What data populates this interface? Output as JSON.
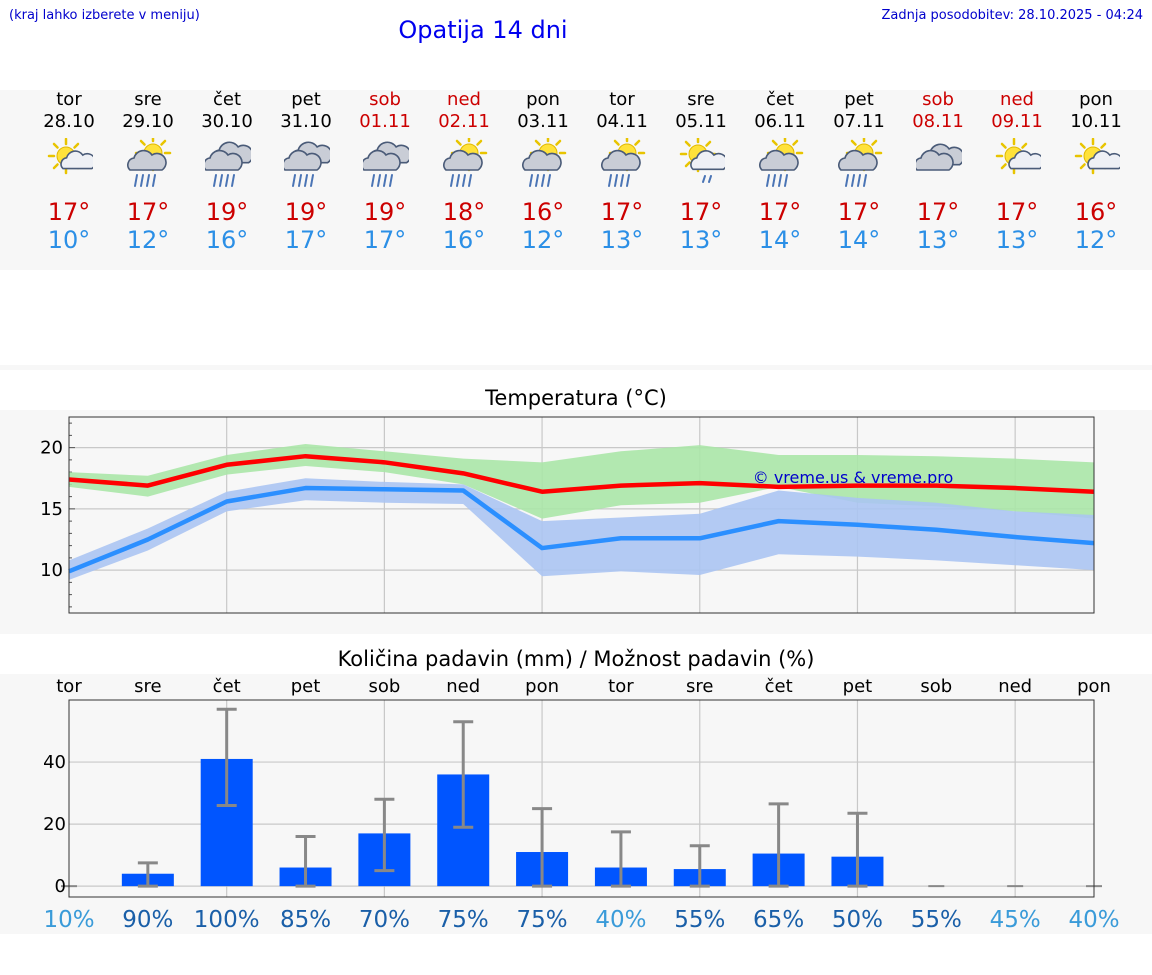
{
  "header": {
    "hint": "(kraj lahko izberete v meniju)",
    "title": "Opatija 14 dni",
    "updated": "Zadnja posodobitev: 28.10.2025 - 04:24"
  },
  "days": [
    {
      "name": "tor",
      "date": "28.10",
      "weekend": false,
      "icon": "sun-cloud-icon",
      "max": "17°",
      "min": "10°"
    },
    {
      "name": "sre",
      "date": "29.10",
      "weekend": false,
      "icon": "sun-cloud-rain-icon",
      "max": "17°",
      "min": "12°"
    },
    {
      "name": "čet",
      "date": "30.10",
      "weekend": false,
      "icon": "cloud-rain-icon",
      "max": "19°",
      "min": "16°"
    },
    {
      "name": "pet",
      "date": "31.10",
      "weekend": false,
      "icon": "cloud-rain-icon",
      "max": "19°",
      "min": "17°"
    },
    {
      "name": "sob",
      "date": "01.11",
      "weekend": true,
      "icon": "cloud-rain-icon",
      "max": "19°",
      "min": "17°"
    },
    {
      "name": "ned",
      "date": "02.11",
      "weekend": true,
      "icon": "sun-cloud-rain-icon",
      "max": "18°",
      "min": "16°"
    },
    {
      "name": "pon",
      "date": "03.11",
      "weekend": false,
      "icon": "sun-cloud-rain-icon",
      "max": "16°",
      "min": "12°"
    },
    {
      "name": "tor",
      "date": "04.11",
      "weekend": false,
      "icon": "sun-cloud-rain-icon",
      "max": "17°",
      "min": "13°"
    },
    {
      "name": "sre",
      "date": "05.11",
      "weekend": false,
      "icon": "sun-cloud-drizzle-icon",
      "max": "17°",
      "min": "13°"
    },
    {
      "name": "čet",
      "date": "06.11",
      "weekend": false,
      "icon": "sun-cloud-rain-icon",
      "max": "17°",
      "min": "14°"
    },
    {
      "name": "pet",
      "date": "07.11",
      "weekend": false,
      "icon": "sun-cloud-rain-icon",
      "max": "17°",
      "min": "14°"
    },
    {
      "name": "sob",
      "date": "08.11",
      "weekend": true,
      "icon": "cloud-icon",
      "max": "17°",
      "min": "13°"
    },
    {
      "name": "ned",
      "date": "09.11",
      "weekend": true,
      "icon": "sun-cloud-icon",
      "max": "17°",
      "min": "13°"
    },
    {
      "name": "pon",
      "date": "10.11",
      "weekend": false,
      "icon": "sun-cloud-icon",
      "max": "16°",
      "min": "12°"
    }
  ],
  "colors": {
    "max_line": "#ff0000",
    "min_line": "#2b8fff",
    "max_band": "#a9e6a6",
    "min_band": "#aac4f2",
    "bar": "#0055ff",
    "error_bar": "#888888",
    "watermark": "#0000cc"
  },
  "chart_data": [
    {
      "type": "line",
      "title": "Temperatura (°C)",
      "watermark": "© vreme.us & vreme.pro",
      "ylim": [
        6.5,
        22.5
      ],
      "yticks": [
        10,
        15,
        20
      ],
      "grid": true,
      "x": [
        0,
        1,
        2,
        3,
        4,
        5,
        6,
        7,
        8,
        9,
        10,
        11,
        12,
        13
      ],
      "series": [
        {
          "name": "",
          "role": "max",
          "values": [
            17.4,
            16.9,
            18.6,
            19.3,
            18.8,
            17.9,
            16.4,
            16.9,
            17.1,
            16.8,
            16.9,
            16.9,
            16.7,
            16.4
          ]
        },
        {
          "name": "",
          "role": "min",
          "values": [
            9.9,
            12.5,
            15.6,
            16.7,
            16.6,
            16.5,
            11.8,
            12.6,
            12.6,
            14.0,
            13.7,
            13.3,
            12.7,
            12.2
          ]
        }
      ],
      "bands": [
        {
          "role": "max",
          "low": [
            16.8,
            16.0,
            17.8,
            18.5,
            18.0,
            17.0,
            14.2,
            15.3,
            15.5,
            16.8,
            15.5,
            15.2,
            14.8,
            14.2
          ],
          "high": [
            18.0,
            17.7,
            19.4,
            20.3,
            19.7,
            19.1,
            18.8,
            19.7,
            20.2,
            19.4,
            19.4,
            19.3,
            19.1,
            18.8
          ]
        },
        {
          "role": "min",
          "low": [
            9.2,
            11.6,
            14.8,
            15.7,
            15.5,
            15.4,
            9.5,
            9.9,
            9.6,
            11.3,
            11.1,
            10.8,
            10.4,
            10.0
          ],
          "high": [
            10.8,
            13.4,
            16.4,
            17.5,
            17.2,
            17.0,
            14.0,
            14.3,
            14.6,
            16.5,
            15.9,
            15.5,
            14.8,
            14.5
          ]
        }
      ]
    },
    {
      "type": "bar",
      "title": "Količina padavin (mm) / Možnost padavin (%)",
      "categories": [
        "tor",
        "sre",
        "čet",
        "pet",
        "sob",
        "ned",
        "pon",
        "tor",
        "sre",
        "čet",
        "pet",
        "sob",
        "ned",
        "pon"
      ],
      "ylim": [
        -3.5,
        60
      ],
      "yticks": [
        0,
        20,
        40
      ],
      "grid": true,
      "values": [
        0,
        4,
        41,
        6,
        17,
        36,
        11,
        6,
        5.5,
        10.5,
        9.5,
        0,
        0,
        0
      ],
      "err_low": [
        0,
        0,
        26,
        0,
        5,
        19,
        0,
        0,
        0,
        0,
        0,
        0,
        0,
        0
      ],
      "err_high": [
        0,
        7.5,
        57,
        16,
        28,
        53,
        25,
        17.5,
        13,
        26.5,
        23.5,
        0,
        0,
        0
      ],
      "probabilities": [
        "10%",
        "90%",
        "100%",
        "85%",
        "70%",
        "75%",
        "75%",
        "40%",
        "55%",
        "65%",
        "50%",
        "55%",
        "45%",
        "40%"
      ],
      "probability_colors": [
        "#3a9bd9",
        "#1a5fa8",
        "#1a5fa8",
        "#1a5fa8",
        "#1a5fa8",
        "#1a5fa8",
        "#1a5fa8",
        "#3a9bd9",
        "#1a5fa8",
        "#1a5fa8",
        "#1a5fa8",
        "#1a5fa8",
        "#3a9bd9",
        "#3a9bd9"
      ]
    }
  ]
}
